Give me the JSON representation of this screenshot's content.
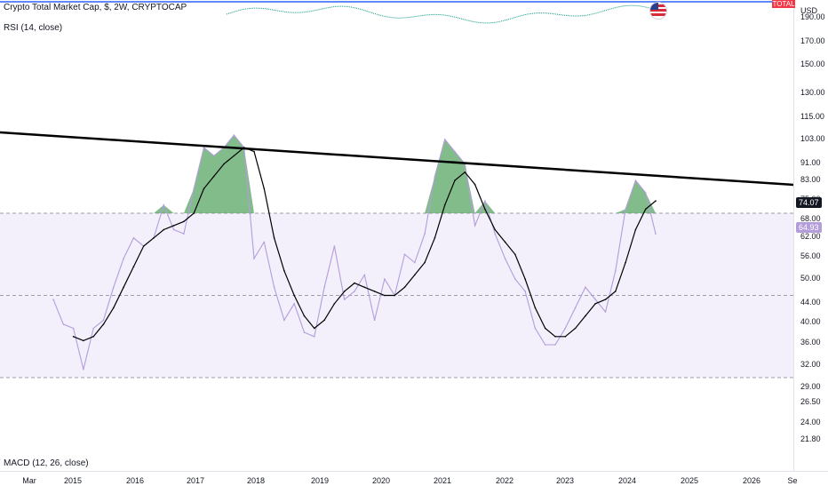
{
  "header": {
    "symbol_title": "Crypto Total Market Cap, $, 2W, CRYPTOCAP",
    "ticker_badge": "TOTAL",
    "currency": "USD"
  },
  "indicators": {
    "rsi_label": "RSI (14, close)",
    "macd_label": "MACD (12, 26, close)"
  },
  "price_axis": {
    "ticks": [
      "190.00",
      "170.00",
      "150.00",
      "130.00",
      "115.00",
      "103.00",
      "91.00",
      "83.00",
      "75.00",
      "68.00",
      "62.00",
      "56.00",
      "50.00",
      "44.00",
      "40.00",
      "36.00",
      "32.00",
      "29.00",
      "26.50",
      "24.00",
      "21.80"
    ],
    "last_value": "74.07",
    "rsi_value": "64.93"
  },
  "time_axis": {
    "labels": [
      "Mar",
      "2015",
      "2016",
      "2017",
      "2018",
      "2019",
      "2020",
      "2021",
      "2022",
      "2023",
      "2024",
      "2025",
      "2026",
      "Se"
    ]
  },
  "colors": {
    "rsi_line": "#b39ddb",
    "rsi_ma_line": "#000000",
    "rsi_band_fill": "#f3effb",
    "overbought_fill": "#5aa564",
    "trendline": "#000000",
    "last_value_badge": "#131722",
    "rsi_value_badge": "#b39ddb",
    "ticker_badge": "#f23645"
  },
  "chart_data": {
    "type": "line",
    "title": "RSI (14, close)",
    "x": [
      "2014-12",
      "2015-01",
      "2015-03",
      "2015-05",
      "2015-07",
      "2015-09",
      "2015-11",
      "2016-01",
      "2016-03",
      "2016-05",
      "2016-07",
      "2016-09",
      "2016-11",
      "2017-01",
      "2017-03",
      "2017-05",
      "2017-06",
      "2017-08",
      "2017-10",
      "2017-12",
      "2018-01",
      "2018-03",
      "2018-05",
      "2018-07",
      "2018-09",
      "2018-11",
      "2019-01",
      "2019-03",
      "2019-05",
      "2019-07",
      "2019-09",
      "2019-11",
      "2020-01",
      "2020-03",
      "2020-05",
      "2020-07",
      "2020-09",
      "2020-11",
      "2021-01",
      "2021-02",
      "2021-04",
      "2021-06",
      "2021-08",
      "2021-10",
      "2021-12",
      "2022-02",
      "2022-04",
      "2022-06",
      "2022-08",
      "2022-10",
      "2022-12",
      "2023-02",
      "2023-04",
      "2023-06",
      "2023-08",
      "2023-10",
      "2023-12",
      "2024-02",
      "2024-03",
      "2024-05",
      "2024-06"
    ],
    "series": [
      {
        "name": "RSI (14, close)",
        "values": [
          49,
          43,
          42,
          32,
          42,
          44,
          52,
          59,
          64,
          62,
          64,
          72,
          66,
          65,
          76,
          86,
          84,
          86,
          89,
          86,
          59,
          63,
          52,
          44,
          48,
          41,
          40,
          52,
          62,
          49,
          51,
          55,
          44,
          54,
          50,
          60,
          58,
          65,
          79,
          88,
          85,
          82,
          67,
          73,
          65,
          59,
          54,
          51,
          42,
          38,
          38,
          42,
          47,
          52,
          49,
          46,
          56,
          71,
          78,
          75,
          65
        ]
      },
      {
        "name": "RSI MA",
        "values": [
          null,
          null,
          40,
          39,
          40,
          43,
          47,
          52,
          57,
          62,
          64,
          66,
          67,
          68,
          70,
          76,
          79,
          82,
          84,
          86,
          85,
          76,
          64,
          56,
          50,
          45,
          42,
          44,
          48,
          51,
          53,
          52,
          51,
          50,
          50,
          52,
          55,
          58,
          64,
          72,
          78,
          80,
          77,
          71,
          66,
          63,
          60,
          54,
          47,
          42,
          40,
          40,
          42,
          45,
          48,
          49,
          51,
          58,
          66,
          71,
          73
        ]
      }
    ],
    "reference_lines": [
      70,
      50,
      30
    ],
    "ylim": [
      20,
      100
    ],
    "grid": false,
    "legend": "none"
  }
}
